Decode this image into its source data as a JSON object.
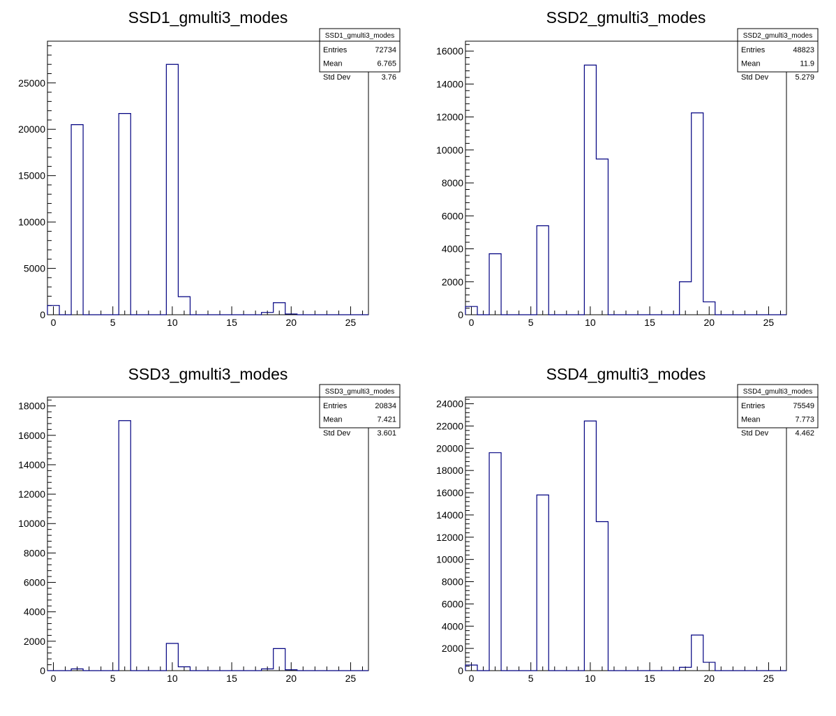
{
  "colors": {
    "histogram_line": "#000080",
    "frame": "#000000",
    "background": "#ffffff"
  },
  "chart_data": [
    {
      "type": "histogram",
      "title": "SSD1_gmulti3_modes",
      "stats": {
        "name": "SSD1_gmulti3_modes",
        "entries_label": "Entries",
        "entries": "72734",
        "mean_label": "Mean",
        "mean": "6.765",
        "stddev_label": "Std Dev",
        "stddev": "3.76"
      },
      "xlim": [
        -0.5,
        26.5
      ],
      "ylim": [
        0,
        29500
      ],
      "x_ticks": [
        0,
        5,
        10,
        15,
        20,
        25
      ],
      "x_tick_labels": [
        "0",
        "5",
        "10",
        "15",
        "20",
        "25"
      ],
      "y_ticks": [
        0,
        5000,
        10000,
        15000,
        20000,
        25000
      ],
      "y_tick_labels": [
        "0",
        "5000",
        "10000",
        "15000",
        "20000",
        "25000"
      ],
      "bin_edges": [
        -0.5,
        0.5,
        1.5,
        2.5,
        3.5,
        4.5,
        5.5,
        6.5,
        7.5,
        8.5,
        9.5,
        10.5,
        11.5,
        12.5,
        13.5,
        14.5,
        15.5,
        16.5,
        17.5,
        18.5,
        19.5,
        20.5,
        21.5,
        22.5,
        23.5,
        24.5,
        25.5,
        26.5
      ],
      "values": [
        1000,
        0,
        20500,
        0,
        0,
        0,
        21700,
        0,
        0,
        0,
        27000,
        1950,
        0,
        0,
        0,
        0,
        0,
        0,
        250,
        1300,
        80,
        0,
        0,
        0,
        0,
        0,
        0
      ]
    },
    {
      "type": "histogram",
      "title": "SSD2_gmulti3_modes",
      "stats": {
        "name": "SSD2_gmulti3_modes",
        "entries_label": "Entries",
        "entries": "48823",
        "mean_label": "Mean",
        "mean": "11.9",
        "stddev_label": "Std Dev",
        "stddev": "5.279"
      },
      "xlim": [
        -0.5,
        26.5
      ],
      "ylim": [
        0,
        16600
      ],
      "x_ticks": [
        0,
        5,
        10,
        15,
        20,
        25
      ],
      "x_tick_labels": [
        "0",
        "5",
        "10",
        "15",
        "20",
        "25"
      ],
      "y_ticks": [
        0,
        2000,
        4000,
        6000,
        8000,
        10000,
        12000,
        14000,
        16000
      ],
      "y_tick_labels": [
        "0",
        "2000",
        "4000",
        "6000",
        "8000",
        "10000",
        "12000",
        "14000",
        "16000"
      ],
      "bin_edges": [
        -0.5,
        0.5,
        1.5,
        2.5,
        3.5,
        4.5,
        5.5,
        6.5,
        7.5,
        8.5,
        9.5,
        10.5,
        11.5,
        12.5,
        13.5,
        14.5,
        15.5,
        16.5,
        17.5,
        18.5,
        19.5,
        20.5,
        21.5,
        22.5,
        23.5,
        24.5,
        25.5,
        26.5
      ],
      "values": [
        500,
        0,
        3700,
        0,
        0,
        0,
        5400,
        0,
        0,
        0,
        15150,
        9450,
        0,
        0,
        0,
        0,
        0,
        0,
        2000,
        12250,
        780,
        0,
        0,
        0,
        0,
        0,
        0
      ]
    },
    {
      "type": "histogram",
      "title": "SSD3_gmulti3_modes",
      "stats": {
        "name": "SSD3_gmulti3_modes",
        "entries_label": "Entries",
        "entries": "20834",
        "mean_label": "Mean",
        "mean": "7.421",
        "stddev_label": "Std Dev",
        "stddev": "3.601"
      },
      "xlim": [
        -0.5,
        26.5
      ],
      "ylim": [
        0,
        18600
      ],
      "x_ticks": [
        0,
        5,
        10,
        15,
        20,
        25
      ],
      "x_tick_labels": [
        "0",
        "5",
        "10",
        "15",
        "20",
        "25"
      ],
      "y_ticks": [
        0,
        2000,
        4000,
        6000,
        8000,
        10000,
        12000,
        14000,
        16000,
        18000
      ],
      "y_tick_labels": [
        "0",
        "2000",
        "4000",
        "6000",
        "8000",
        "10000",
        "12000",
        "14000",
        "16000",
        "18000"
      ],
      "bin_edges": [
        -0.5,
        0.5,
        1.5,
        2.5,
        3.5,
        4.5,
        5.5,
        6.5,
        7.5,
        8.5,
        9.5,
        10.5,
        11.5,
        12.5,
        13.5,
        14.5,
        15.5,
        16.5,
        17.5,
        18.5,
        19.5,
        20.5,
        21.5,
        22.5,
        23.5,
        24.5,
        25.5,
        26.5
      ],
      "values": [
        0,
        0,
        120,
        0,
        0,
        0,
        17000,
        0,
        0,
        0,
        1850,
        260,
        0,
        0,
        0,
        0,
        0,
        0,
        120,
        1500,
        60,
        0,
        0,
        0,
        0,
        0,
        0
      ]
    },
    {
      "type": "histogram",
      "title": "SSD4_gmulti3_modes",
      "stats": {
        "name": "SSD4_gmulti3_modes",
        "entries_label": "Entries",
        "entries": "75549",
        "mean_label": "Mean",
        "mean": "7.773",
        "stddev_label": "Std Dev",
        "stddev": "4.462"
      },
      "xlim": [
        -0.5,
        26.5
      ],
      "ylim": [
        0,
        24600
      ],
      "x_ticks": [
        0,
        5,
        10,
        15,
        20,
        25
      ],
      "x_tick_labels": [
        "0",
        "5",
        "10",
        "15",
        "20",
        "25"
      ],
      "y_ticks": [
        0,
        2000,
        4000,
        6000,
        8000,
        10000,
        12000,
        14000,
        16000,
        18000,
        20000,
        22000,
        24000
      ],
      "y_tick_labels": [
        "0",
        "2000",
        "4000",
        "6000",
        "8000",
        "10000",
        "12000",
        "14000",
        "16000",
        "18000",
        "20000",
        "22000",
        "24000"
      ],
      "bin_edges": [
        -0.5,
        0.5,
        1.5,
        2.5,
        3.5,
        4.5,
        5.5,
        6.5,
        7.5,
        8.5,
        9.5,
        10.5,
        11.5,
        12.5,
        13.5,
        14.5,
        15.5,
        16.5,
        17.5,
        18.5,
        19.5,
        20.5,
        21.5,
        22.5,
        23.5,
        24.5,
        25.5,
        26.5
      ],
      "values": [
        500,
        0,
        19600,
        0,
        0,
        0,
        15800,
        0,
        0,
        0,
        22450,
        13400,
        0,
        0,
        0,
        0,
        0,
        0,
        300,
        3200,
        750,
        0,
        0,
        0,
        0,
        0,
        0
      ]
    }
  ]
}
